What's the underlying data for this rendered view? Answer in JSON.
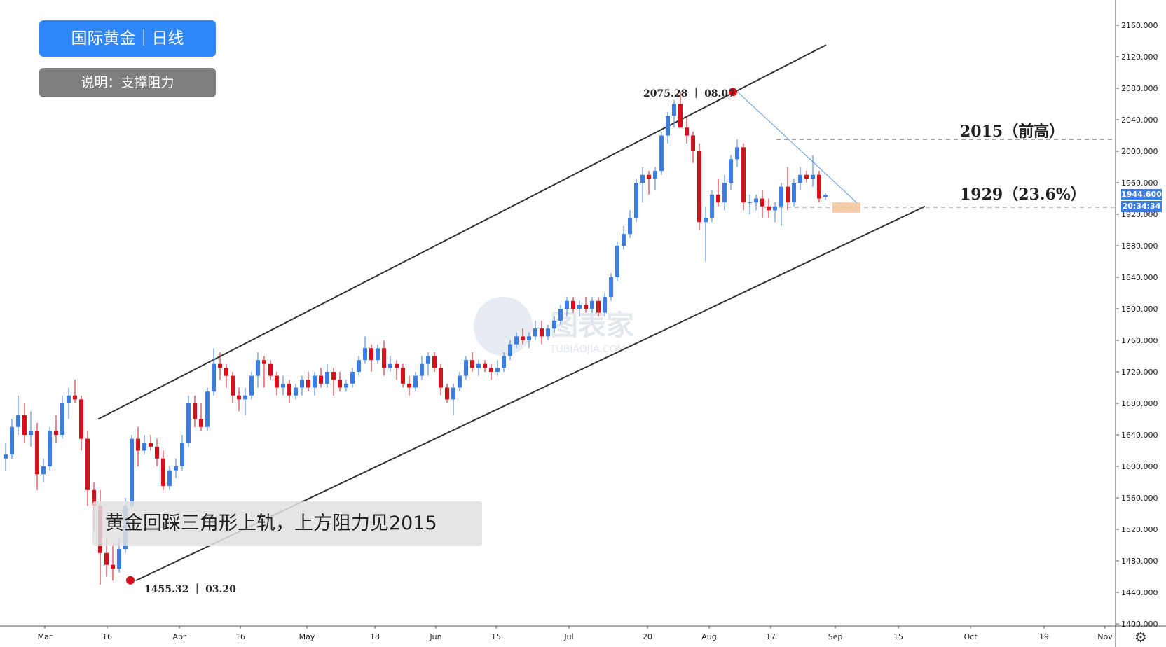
{
  "badge_title": "国际黄金｜日线",
  "badge_sub": "说明：支撑阻力",
  "note": "黄金回踩三角形上轨，上方阻力见2015",
  "level_2015_label": "2015（前高）",
  "level_1929_label": "1929（23.6%）",
  "high_label": "2075.28 ｜ 08.07",
  "low_label": "1455.32 ｜ 03.20",
  "watermark_text": "图表家",
  "watermark_sub": "TUBIAOJIA.COM",
  "current_price_tag": "1944.600",
  "countdown_tag": "20:34:34",
  "colors": {
    "up": "#3d7de0",
    "down": "#d3111b",
    "badge_blue": "#2f86f6",
    "badge_gray": "#7f7f7f",
    "zone": "#f4c39a",
    "marker": "#d3111b"
  },
  "icons": {
    "settings": "gear-icon"
  },
  "chart_data": {
    "type": "candlestick",
    "y_ticks": [
      "2160.000",
      "2120.000",
      "2080.000",
      "2040.000",
      "2000.000",
      "1960.000",
      "1920.000",
      "1880.000",
      "1840.000",
      "1800.000",
      "1760.000",
      "1720.000",
      "1680.000",
      "1640.000",
      "1600.000",
      "1560.000",
      "1520.000",
      "1480.000",
      "1440.000",
      "1400.000"
    ],
    "x_ticks": [
      "Mar",
      "16",
      "Apr",
      "16",
      "May",
      "18",
      "Jun",
      "15",
      "Jul",
      "20",
      "Aug",
      "17",
      "Sep",
      "15",
      "Oct",
      "19",
      "Nov"
    ],
    "ylim": [
      1400,
      2170
    ],
    "grid": false,
    "candles": [
      [
        1610,
        1630,
        1595,
        1615
      ],
      [
        1615,
        1660,
        1610,
        1650
      ],
      [
        1650,
        1690,
        1640,
        1665
      ],
      [
        1665,
        1680,
        1630,
        1640
      ],
      [
        1640,
        1670,
        1625,
        1645
      ],
      [
        1645,
        1655,
        1570,
        1590
      ],
      [
        1590,
        1610,
        1580,
        1600
      ],
      [
        1600,
        1650,
        1595,
        1645
      ],
      [
        1645,
        1665,
        1630,
        1640
      ],
      [
        1640,
        1690,
        1635,
        1680
      ],
      [
        1680,
        1700,
        1660,
        1690
      ],
      [
        1690,
        1710,
        1680,
        1685
      ],
      [
        1685,
        1690,
        1620,
        1635
      ],
      [
        1635,
        1645,
        1550,
        1570
      ],
      [
        1570,
        1580,
        1520,
        1550
      ],
      [
        1550,
        1570,
        1450,
        1490
      ],
      [
        1490,
        1510,
        1460,
        1475
      ],
      [
        1475,
        1500,
        1455,
        1470
      ],
      [
        1470,
        1510,
        1465,
        1495
      ],
      [
        1495,
        1560,
        1490,
        1550
      ],
      [
        1550,
        1640,
        1545,
        1635
      ],
      [
        1635,
        1650,
        1600,
        1620
      ],
      [
        1620,
        1640,
        1615,
        1630
      ],
      [
        1630,
        1640,
        1620,
        1625
      ],
      [
        1625,
        1635,
        1600,
        1610
      ],
      [
        1610,
        1620,
        1570,
        1575
      ],
      [
        1575,
        1600,
        1570,
        1595
      ],
      [
        1595,
        1610,
        1585,
        1600
      ],
      [
        1600,
        1640,
        1595,
        1630
      ],
      [
        1630,
        1690,
        1625,
        1680
      ],
      [
        1680,
        1690,
        1650,
        1660
      ],
      [
        1660,
        1680,
        1645,
        1650
      ],
      [
        1650,
        1700,
        1645,
        1695
      ],
      [
        1695,
        1750,
        1690,
        1730
      ],
      [
        1730,
        1745,
        1710,
        1725
      ],
      [
        1725,
        1730,
        1700,
        1715
      ],
      [
        1715,
        1720,
        1680,
        1690
      ],
      [
        1690,
        1700,
        1670,
        1685
      ],
      [
        1685,
        1700,
        1665,
        1690
      ],
      [
        1690,
        1720,
        1685,
        1715
      ],
      [
        1715,
        1745,
        1700,
        1735
      ],
      [
        1735,
        1740,
        1700,
        1730
      ],
      [
        1730,
        1735,
        1710,
        1715
      ],
      [
        1715,
        1720,
        1690,
        1700
      ],
      [
        1700,
        1715,
        1690,
        1705
      ],
      [
        1705,
        1710,
        1680,
        1690
      ],
      [
        1690,
        1705,
        1685,
        1700
      ],
      [
        1700,
        1715,
        1690,
        1710
      ],
      [
        1710,
        1720,
        1695,
        1700
      ],
      [
        1700,
        1720,
        1690,
        1715
      ],
      [
        1715,
        1725,
        1700,
        1705
      ],
      [
        1705,
        1730,
        1700,
        1720
      ],
      [
        1720,
        1725,
        1690,
        1710
      ],
      [
        1710,
        1720,
        1695,
        1700
      ],
      [
        1700,
        1710,
        1695,
        1705
      ],
      [
        1705,
        1725,
        1700,
        1720
      ],
      [
        1720,
        1740,
        1715,
        1735
      ],
      [
        1735,
        1765,
        1730,
        1750
      ],
      [
        1750,
        1755,
        1720,
        1735
      ],
      [
        1735,
        1755,
        1730,
        1750
      ],
      [
        1750,
        1760,
        1715,
        1725
      ],
      [
        1725,
        1740,
        1720,
        1730
      ],
      [
        1730,
        1735,
        1710,
        1725
      ],
      [
        1725,
        1730,
        1700,
        1705
      ],
      [
        1705,
        1715,
        1690,
        1700
      ],
      [
        1700,
        1720,
        1695,
        1715
      ],
      [
        1715,
        1740,
        1710,
        1730
      ],
      [
        1730,
        1745,
        1715,
        1740
      ],
      [
        1740,
        1745,
        1720,
        1725
      ],
      [
        1725,
        1730,
        1690,
        1700
      ],
      [
        1700,
        1705,
        1680,
        1685
      ],
      [
        1685,
        1705,
        1665,
        1700
      ],
      [
        1700,
        1720,
        1695,
        1715
      ],
      [
        1715,
        1740,
        1710,
        1735
      ],
      [
        1735,
        1745,
        1720,
        1725
      ],
      [
        1725,
        1735,
        1715,
        1730
      ],
      [
        1730,
        1735,
        1720,
        1725
      ],
      [
        1725,
        1730,
        1710,
        1720
      ],
      [
        1720,
        1735,
        1715,
        1725
      ],
      [
        1725,
        1745,
        1720,
        1740
      ],
      [
        1740,
        1760,
        1735,
        1755
      ],
      [
        1755,
        1770,
        1750,
        1765
      ],
      [
        1765,
        1775,
        1755,
        1760
      ],
      [
        1760,
        1770,
        1750,
        1765
      ],
      [
        1765,
        1785,
        1760,
        1775
      ],
      [
        1775,
        1785,
        1755,
        1765
      ],
      [
        1765,
        1780,
        1760,
        1775
      ],
      [
        1775,
        1790,
        1770,
        1785
      ],
      [
        1785,
        1805,
        1780,
        1800
      ],
      [
        1800,
        1815,
        1790,
        1810
      ],
      [
        1810,
        1815,
        1795,
        1800
      ],
      [
        1800,
        1810,
        1790,
        1805
      ],
      [
        1805,
        1815,
        1795,
        1800
      ],
      [
        1800,
        1815,
        1795,
        1810
      ],
      [
        1810,
        1815,
        1790,
        1795
      ],
      [
        1795,
        1820,
        1790,
        1815
      ],
      [
        1815,
        1845,
        1810,
        1840
      ],
      [
        1840,
        1885,
        1835,
        1880
      ],
      [
        1880,
        1905,
        1875,
        1895
      ],
      [
        1895,
        1925,
        1890,
        1915
      ],
      [
        1915,
        1965,
        1910,
        1960
      ],
      [
        1960,
        1980,
        1935,
        1970
      ],
      [
        1970,
        1975,
        1945,
        1965
      ],
      [
        1965,
        1980,
        1950,
        1975
      ],
      [
        1975,
        2025,
        1970,
        2020
      ],
      [
        2020,
        2050,
        2010,
        2045
      ],
      [
        2045,
        2065,
        2030,
        2060
      ],
      [
        2060,
        2075,
        2035,
        2030
      ],
      [
        2030,
        2045,
        2010,
        2020
      ],
      [
        2020,
        2025,
        1985,
        2000
      ],
      [
        2000,
        2010,
        1900,
        1910
      ],
      [
        1910,
        1930,
        1860,
        1915
      ],
      [
        1915,
        1950,
        1910,
        1945
      ],
      [
        1945,
        1965,
        1930,
        1935
      ],
      [
        1935,
        1970,
        1925,
        1960
      ],
      [
        1960,
        1995,
        1950,
        1990
      ],
      [
        1990,
        2015,
        1980,
        2005
      ],
      [
        2005,
        2010,
        1925,
        1935
      ],
      [
        1935,
        1945,
        1920,
        1935
      ],
      [
        1935,
        1945,
        1925,
        1940
      ],
      [
        1940,
        1950,
        1915,
        1930
      ],
      [
        1930,
        1940,
        1915,
        1925
      ],
      [
        1925,
        1935,
        1910,
        1930
      ],
      [
        1930,
        1960,
        1905,
        1955
      ],
      [
        1955,
        1980,
        1925,
        1935
      ],
      [
        1935,
        1965,
        1930,
        1960
      ],
      [
        1960,
        1980,
        1950,
        1970
      ],
      [
        1970,
        1975,
        1960,
        1965
      ],
      [
        1965,
        1995,
        1955,
        1970
      ],
      [
        1970,
        1975,
        1935,
        1940
      ],
      [
        1942,
        1947,
        1938,
        1944.6
      ]
    ],
    "channel": {
      "upper": [
        [
          0,
          1660
        ],
        [
          123,
          2135
        ]
      ],
      "lower": [
        [
          17,
          1455
        ],
        [
          144,
          1930
        ]
      ]
    },
    "triangle_line": [
      [
        107,
        2075
      ],
      [
        132,
        1932
      ]
    ],
    "levels": [
      {
        "value": 2015,
        "name": "2015（前高）"
      },
      {
        "value": 1929,
        "name": "1929（23.6%）"
      }
    ],
    "markers": [
      {
        "index": 107,
        "value": 2075.28
      },
      {
        "index": 17,
        "value": 1455.32
      }
    ],
    "zone": {
      "from_index": 132,
      "to_index": 136,
      "low": 1922,
      "high": 1935
    }
  }
}
